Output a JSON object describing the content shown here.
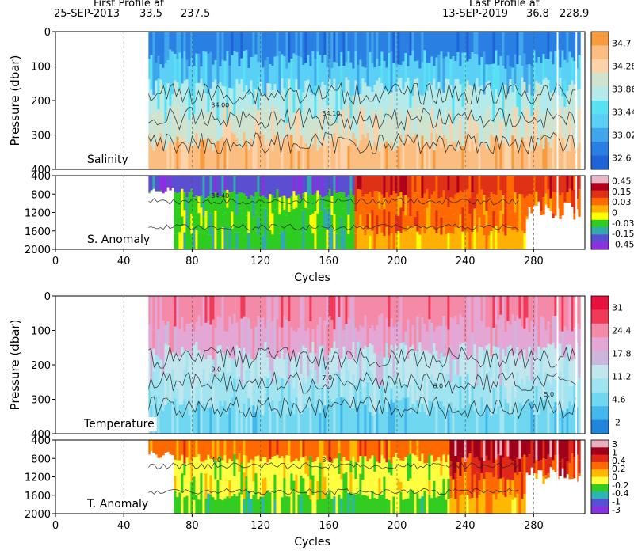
{
  "header": {
    "first_label": "First Profile at",
    "first_date": "25-SEP-2013",
    "first_lat": "33.5",
    "first_lon": "237.5",
    "last_label": "Last Profile at",
    "last_date": "13-SEP-2019",
    "last_lat": "36.8",
    "last_lon": "228.9"
  },
  "chart_data": [
    {
      "type": "heatmap",
      "title": "Salinity",
      "ylabel": "Pressure (dbar)",
      "xlim": [
        0,
        310
      ],
      "ylim": [
        400,
        0
      ],
      "y_ticks": [
        "0",
        "100",
        "200",
        "300",
        "400"
      ],
      "colorbar_ticks": [
        "34.7",
        "34.28",
        "33.86",
        "33.44",
        "33.02",
        "32.6"
      ],
      "colorbar_colors": [
        "#f79b3e",
        "#fbbd80",
        "#fcd2a8",
        "#cfe3cf",
        "#b4eaea",
        "#57e1f2",
        "#5ad0f7",
        "#3fa6ec",
        "#2a80e2",
        "#1e63d8"
      ],
      "contour_labels": [
        "34.00",
        "34.10"
      ],
      "x_data_start": 54,
      "x_data_end": 306
    },
    {
      "type": "heatmap",
      "title": "S. Anomaly",
      "xlabel": "Cycles",
      "xlim": [
        0,
        310
      ],
      "ylim": [
        2000,
        400
      ],
      "x_ticks": [
        "0",
        "40",
        "80",
        "120",
        "160",
        "200",
        "240",
        "280"
      ],
      "y_ticks": [
        "400",
        "800",
        "1200",
        "1600",
        "2000"
      ],
      "colorbar_ticks": [
        "0.45",
        "0.15",
        "0.03",
        "0",
        "-0.03",
        "-0.15",
        "-0.45"
      ],
      "colorbar_colors": [
        "#e6b8c8",
        "#b00020",
        "#e03016",
        "#ff6a00",
        "#ffb000",
        "#ffff00",
        "#2ecc20",
        "#33a8b0",
        "#5a4fd0",
        "#8a30e0"
      ],
      "contour_labels": [
        "34.40"
      ],
      "x_data_start": 54,
      "x_data_end": 306
    },
    {
      "type": "heatmap",
      "title": "Temperature",
      "ylabel": "Pressure (dbar)",
      "xlim": [
        0,
        310
      ],
      "ylim": [
        400,
        0
      ],
      "y_ticks": [
        "0",
        "100",
        "200",
        "300",
        "400"
      ],
      "colorbar_ticks": [
        "31",
        "24.4",
        "17.8",
        "11.2",
        "4.6",
        "-2"
      ],
      "colorbar_colors": [
        "#e8103e",
        "#f03a58",
        "#f58aa8",
        "#e4a6d4",
        "#cdb6dd",
        "#c2e6ee",
        "#9fe4f0",
        "#6fd7ef",
        "#43b8ec",
        "#1f86dc"
      ],
      "contour_labels": [
        "9.0",
        "7.0",
        "6.0",
        "5.0"
      ],
      "x_data_start": 54,
      "x_data_end": 306
    },
    {
      "type": "heatmap",
      "title": "T. Anomaly",
      "xlabel": "Cycles",
      "xlim": [
        0,
        310
      ],
      "ylim": [
        2000,
        400
      ],
      "x_ticks": [
        "0",
        "40",
        "80",
        "120",
        "160",
        "200",
        "240",
        "280"
      ],
      "y_ticks": [
        "400",
        "800",
        "1200",
        "1600",
        "2000"
      ],
      "colorbar_ticks": [
        "3",
        "1",
        "0.4",
        "0.2",
        "0",
        "-0.2",
        "-0.4",
        "-1",
        "-3"
      ],
      "colorbar_colors": [
        "#e8b0bc",
        "#a0001a",
        "#e02818",
        "#ff6a00",
        "#ffb800",
        "#ffff40",
        "#33cc20",
        "#2ab7b4",
        "#5a50d8",
        "#8a30e0"
      ],
      "contour_labels": [
        "4.0",
        "3.0"
      ],
      "x_data_start": 54,
      "x_data_end": 306
    }
  ]
}
